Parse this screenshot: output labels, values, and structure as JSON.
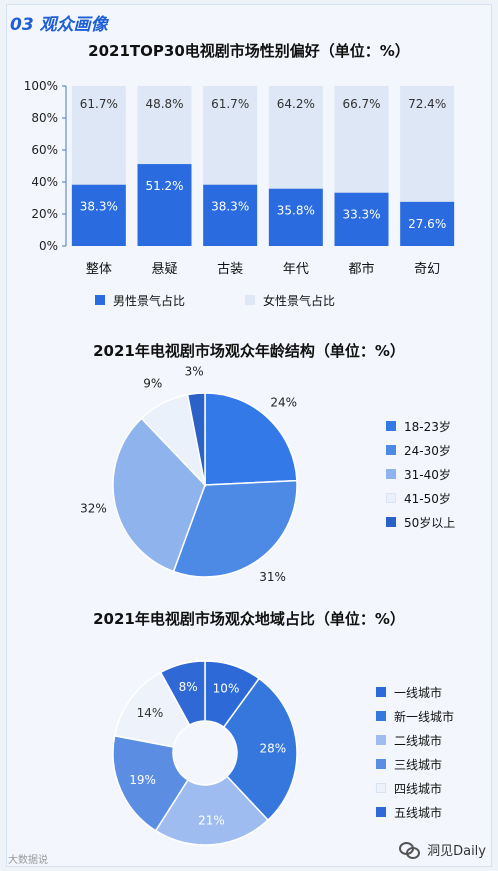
{
  "section": {
    "title": "03 观众画像"
  },
  "colors": {
    "bar_male": "#2a6be0",
    "bar_female": "#dde7f5",
    "pie": [
      "#3479e8",
      "#4d8ae6",
      "#8fb3ec",
      "#eaf1fb",
      "#2b62c7"
    ],
    "donut": [
      "#2d6ad8",
      "#3577dd",
      "#9ebcf0",
      "#5b8ee3",
      "#eef3fb",
      "#3069d6"
    ]
  },
  "chart_data": [
    {
      "type": "bar",
      "stacked": true,
      "title": "2021TOP30电视剧市场性别偏好（单位：%）",
      "categories": [
        "整体",
        "悬疑",
        "古装",
        "年代",
        "都市",
        "奇幻"
      ],
      "series": [
        {
          "name": "男性景气占比",
          "values": [
            38.3,
            51.2,
            38.3,
            35.8,
            33.3,
            27.6
          ],
          "labels": [
            "38.3%",
            "51.2%",
            "38.3%",
            "35.8%",
            "33.3%",
            "27.6%"
          ]
        },
        {
          "name": "女性景气占比",
          "values": [
            61.7,
            48.8,
            61.7,
            64.2,
            66.7,
            72.4
          ],
          "labels": [
            "61.7%",
            "48.8%",
            "61.7%",
            "64.2%",
            "66.7%",
            "72.4%"
          ]
        }
      ],
      "yticks": [
        "0%",
        "20%",
        "40%",
        "60%",
        "80%",
        "100%"
      ],
      "ylim": [
        0,
        100
      ],
      "legend_position": "bottom"
    },
    {
      "type": "pie",
      "title": "2021年电视剧市场观众年龄结构（单位：%）",
      "categories": [
        "18-23岁",
        "24-30岁",
        "31-40岁",
        "41-50岁",
        "50岁以上"
      ],
      "values": [
        24,
        31,
        32,
        9,
        3
      ],
      "labels": [
        "24%",
        "31%",
        "32%",
        "9%",
        "3%"
      ],
      "legend_position": "right"
    },
    {
      "type": "pie",
      "donut": true,
      "title": "2021年电视剧市场观众地域占比（单位：%）",
      "categories": [
        "一线城市",
        "新一线城市",
        "二线城市",
        "三线城市",
        "四线城市",
        "五线城市"
      ],
      "values": [
        10,
        28,
        21,
        19,
        14,
        8
      ],
      "labels": [
        "10%",
        "28%",
        "21%",
        "19%",
        "14%",
        "8%"
      ],
      "legend_position": "right"
    }
  ],
  "watermark": {
    "left": "大数据说",
    "right": "洞见Daily"
  }
}
